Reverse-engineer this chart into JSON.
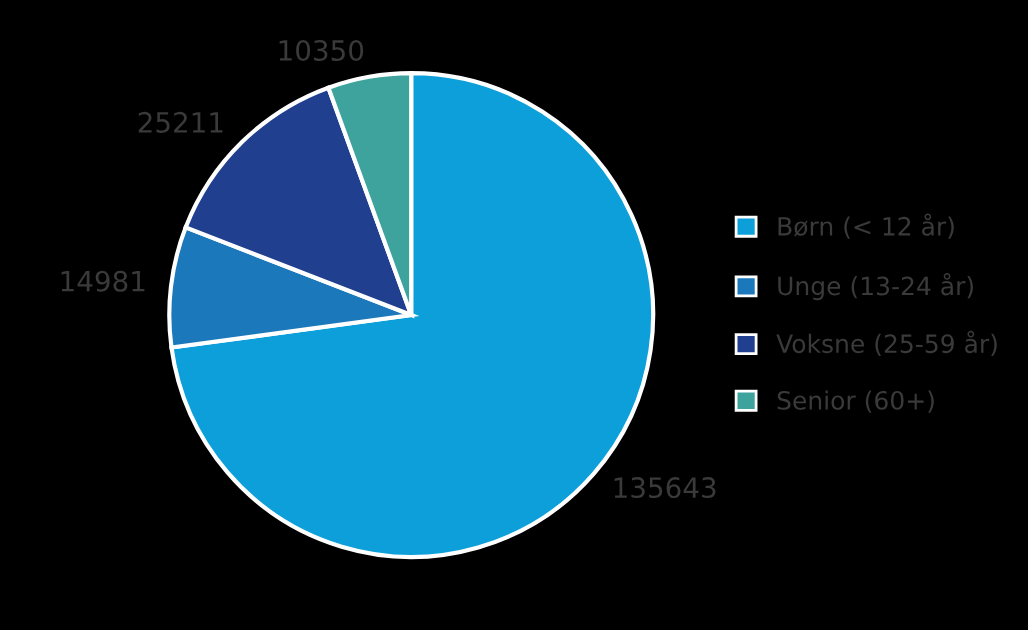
{
  "chart_data": {
    "type": "pie",
    "categories": [
      "Børn (< 12 år)",
      "Unge (13-24 år)",
      "Voksne (25-59 år)",
      "Senior (60+)"
    ],
    "values": [
      135643,
      14981,
      25211,
      10350
    ],
    "colors": [
      "#0c9fd9",
      "#1a78bb",
      "#203f8f",
      "#3ea39c"
    ],
    "data_labels": true,
    "legend": "right"
  }
}
